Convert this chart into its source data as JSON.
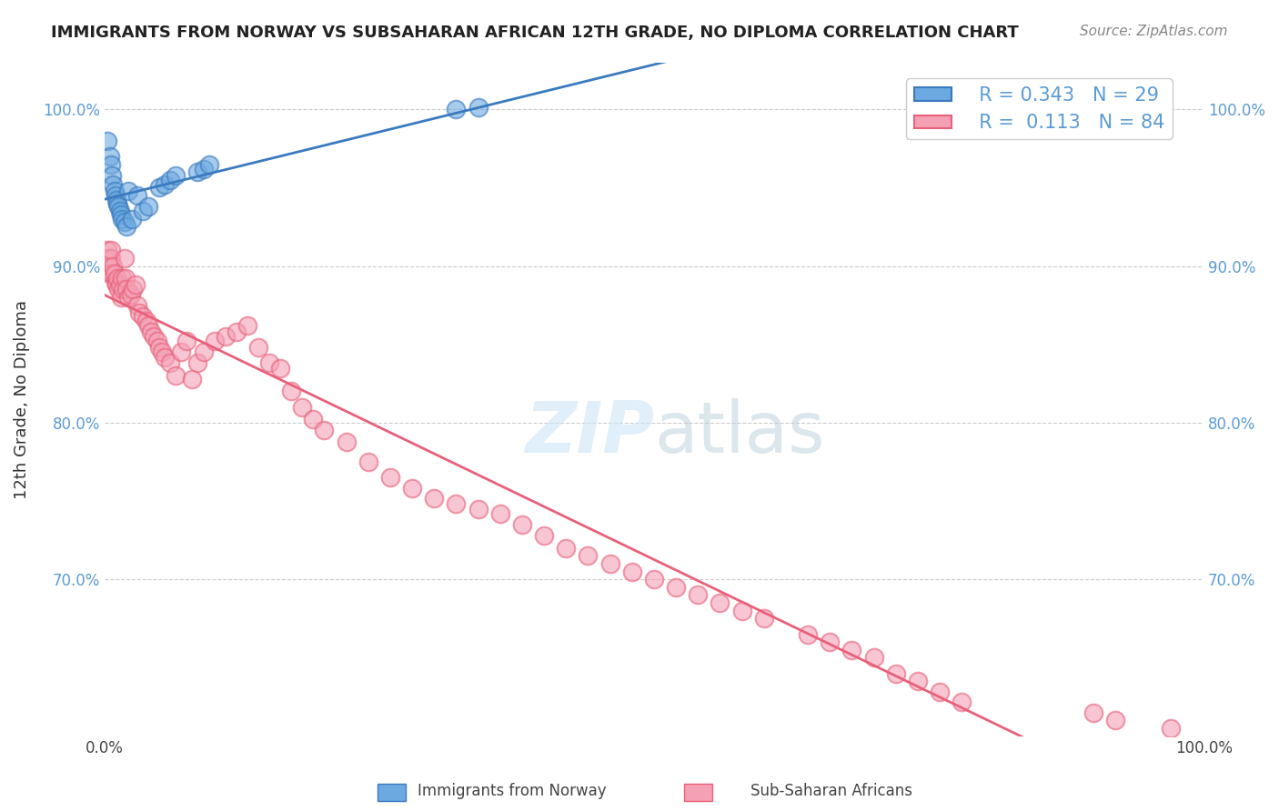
{
  "title": "IMMIGRANTS FROM NORWAY VS SUBSAHARAN AFRICAN 12TH GRADE, NO DIPLOMA CORRELATION CHART",
  "source_text": "Source: ZipAtlas.com",
  "ylabel": "12th Grade, No Diploma",
  "xlim": [
    0.0,
    1.0
  ],
  "ylim": [
    0.6,
    1.03
  ],
  "ytick_labels": [
    "70.0%",
    "80.0%",
    "90.0%",
    "100.0%"
  ],
  "ytick_values": [
    0.7,
    0.8,
    0.9,
    1.0
  ],
  "norway_R": 0.343,
  "norway_N": 29,
  "subsaharan_R": 0.113,
  "subsaharan_N": 84,
  "norway_color": "#6ca9e0",
  "subsaharan_color": "#f4a0b5",
  "norway_line_color": "#3a7abf",
  "subsaharan_line_color": "#e8607a",
  "legend_label_norway": "Immigrants from Norway",
  "legend_label_subsaharan": "Sub-Saharan Africans",
  "norway_x": [
    0.003,
    0.005,
    0.006,
    0.007,
    0.008,
    0.009,
    0.01,
    0.011,
    0.012,
    0.013,
    0.014,
    0.015,
    0.016,
    0.018,
    0.02,
    0.022,
    0.025,
    0.03,
    0.035,
    0.04,
    0.05,
    0.055,
    0.06,
    0.065,
    0.085,
    0.09,
    0.095,
    0.32,
    0.34
  ],
  "norway_y": [
    0.98,
    0.97,
    0.965,
    0.958,
    0.952,
    0.948,
    0.945,
    0.942,
    0.94,
    0.938,
    0.935,
    0.933,
    0.93,
    0.928,
    0.925,
    0.948,
    0.93,
    0.945,
    0.935,
    0.938,
    0.95,
    0.952,
    0.955,
    0.958,
    0.96,
    0.962,
    0.965,
    1.0,
    1.001
  ],
  "subsaharan_x": [
    0.003,
    0.004,
    0.005,
    0.005,
    0.006,
    0.006,
    0.007,
    0.008,
    0.009,
    0.01,
    0.011,
    0.012,
    0.013,
    0.014,
    0.015,
    0.016,
    0.017,
    0.018,
    0.019,
    0.02,
    0.022,
    0.024,
    0.026,
    0.028,
    0.03,
    0.032,
    0.035,
    0.038,
    0.04,
    0.042,
    0.045,
    0.048,
    0.05,
    0.052,
    0.055,
    0.06,
    0.065,
    0.07,
    0.075,
    0.08,
    0.085,
    0.09,
    0.1,
    0.11,
    0.12,
    0.13,
    0.14,
    0.15,
    0.16,
    0.17,
    0.18,
    0.19,
    0.2,
    0.22,
    0.24,
    0.26,
    0.28,
    0.3,
    0.32,
    0.34,
    0.36,
    0.38,
    0.4,
    0.42,
    0.44,
    0.46,
    0.48,
    0.5,
    0.52,
    0.54,
    0.56,
    0.58,
    0.6,
    0.64,
    0.66,
    0.68,
    0.7,
    0.72,
    0.74,
    0.76,
    0.78,
    0.9,
    0.92,
    0.97
  ],
  "subsaharan_y": [
    0.91,
    0.905,
    0.895,
    0.9,
    0.905,
    0.91,
    0.895,
    0.9,
    0.895,
    0.89,
    0.888,
    0.892,
    0.885,
    0.888,
    0.88,
    0.892,
    0.885,
    0.905,
    0.892,
    0.885,
    0.88,
    0.882,
    0.885,
    0.888,
    0.875,
    0.87,
    0.868,
    0.865,
    0.862,
    0.858,
    0.855,
    0.852,
    0.848,
    0.845,
    0.842,
    0.838,
    0.83,
    0.845,
    0.852,
    0.828,
    0.838,
    0.845,
    0.852,
    0.855,
    0.858,
    0.862,
    0.848,
    0.838,
    0.835,
    0.82,
    0.81,
    0.802,
    0.795,
    0.788,
    0.775,
    0.765,
    0.758,
    0.752,
    0.748,
    0.745,
    0.742,
    0.735,
    0.728,
    0.72,
    0.715,
    0.71,
    0.705,
    0.7,
    0.695,
    0.69,
    0.685,
    0.68,
    0.675,
    0.665,
    0.66,
    0.655,
    0.65,
    0.64,
    0.635,
    0.628,
    0.622,
    0.615,
    0.61,
    0.605
  ],
  "watermark_zip": "ZIP",
  "watermark_atlas": "atlas",
  "background_color": "#ffffff",
  "grid_color": "#cccccc"
}
